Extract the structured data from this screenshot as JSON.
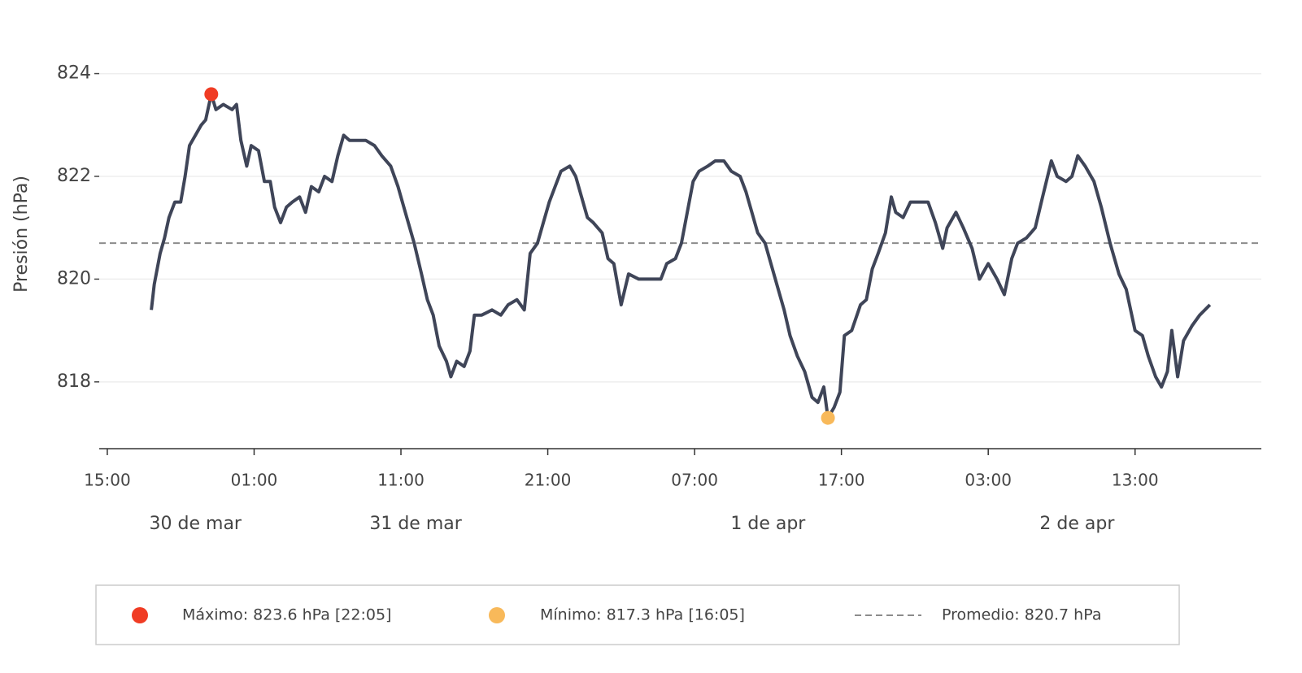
{
  "chart_data": {
    "type": "line",
    "ylabel": "Presión (hPa)",
    "color": "#3f4558",
    "grid": true,
    "xlim": [
      -0.55,
      78.6
    ],
    "ylim": [
      816.7,
      824.8
    ],
    "yticks": [
      818,
      820,
      822,
      824
    ],
    "xticks": [
      {
        "value": 0,
        "label": "15:00"
      },
      {
        "value": 10,
        "label": "01:00"
      },
      {
        "value": 20,
        "label": "11:00"
      },
      {
        "value": 30,
        "label": "21:00"
      },
      {
        "value": 40,
        "label": "07:00"
      },
      {
        "value": 50,
        "label": "17:00"
      },
      {
        "value": 60,
        "label": "03:00"
      },
      {
        "value": 70,
        "label": "13:00"
      }
    ],
    "day_labels": [
      {
        "value": -15,
        "label": "30 de mar"
      },
      {
        "value": 9,
        "label": "31 de mar"
      },
      {
        "value": 33,
        "label": "1 de apr"
      },
      {
        "value": 57,
        "label": "2 de apr"
      }
    ],
    "x": [
      3.0,
      3.2,
      3.6,
      3.9,
      4.2,
      4.6,
      5.0,
      5.3,
      5.6,
      6.0,
      6.4,
      6.7,
      7.083,
      7.4,
      7.9,
      8.5,
      8.8,
      9.1,
      9.5,
      9.8,
      10.3,
      10.7,
      11.1,
      11.4,
      11.8,
      12.2,
      12.6,
      13.1,
      13.5,
      13.9,
      14.4,
      14.8,
      15.3,
      15.7,
      16.1,
      16.5,
      17.1,
      17.6,
      18.2,
      18.7,
      19.3,
      19.8,
      20.4,
      20.9,
      21.4,
      21.8,
      22.2,
      22.6,
      23.1,
      23.4,
      23.8,
      24.3,
      24.7,
      25.0,
      25.5,
      26.2,
      26.8,
      27.3,
      27.9,
      28.4,
      28.8,
      29.3,
      29.7,
      30.1,
      30.5,
      30.9,
      31.5,
      31.9,
      32.3,
      32.7,
      33.1,
      33.7,
      34.1,
      34.5,
      35.0,
      35.5,
      36.2,
      37.0,
      37.7,
      38.1,
      38.7,
      39.1,
      39.5,
      39.9,
      40.3,
      40.9,
      41.4,
      42.0,
      42.5,
      43.1,
      43.5,
      43.9,
      44.3,
      44.8,
      45.3,
      45.8,
      46.1,
      46.5,
      47.0,
      47.5,
      48.0,
      48.4,
      48.8,
      49.083,
      49.5,
      49.9,
      50.2,
      50.7,
      51.3,
      51.7,
      52.1,
      52.5,
      53.0,
      53.4,
      53.7,
      54.2,
      54.7,
      55.3,
      55.9,
      56.4,
      56.9,
      57.2,
      57.8,
      58.3,
      58.9,
      59.4,
      60.0,
      60.6,
      61.1,
      61.6,
      62.0,
      62.6,
      63.2,
      63.7,
      64.3,
      64.7,
      65.3,
      65.7,
      66.1,
      66.6,
      67.2,
      67.7,
      68.3,
      68.9,
      69.4,
      70.0,
      70.5,
      70.9,
      71.4,
      71.8,
      72.2,
      72.5,
      72.9,
      73.3,
      73.9,
      74.4,
      75.1
    ],
    "values": [
      819.4,
      819.9,
      820.5,
      820.8,
      821.2,
      821.5,
      821.5,
      822.0,
      822.6,
      822.8,
      823.0,
      823.1,
      823.6,
      823.3,
      823.4,
      823.3,
      823.4,
      822.7,
      822.2,
      822.6,
      822.5,
      821.9,
      821.9,
      821.4,
      821.1,
      821.4,
      821.5,
      821.6,
      821.3,
      821.8,
      821.7,
      822.0,
      821.9,
      822.4,
      822.8,
      822.7,
      822.7,
      822.7,
      822.6,
      822.4,
      822.2,
      821.8,
      821.2,
      820.7,
      820.1,
      819.6,
      819.3,
      818.7,
      818.4,
      818.1,
      818.4,
      818.3,
      818.6,
      819.3,
      819.3,
      819.4,
      819.3,
      819.5,
      819.6,
      819.4,
      820.5,
      820.7,
      821.1,
      821.5,
      821.8,
      822.1,
      822.2,
      822.0,
      821.6,
      821.2,
      821.1,
      820.9,
      820.4,
      820.3,
      819.5,
      820.1,
      820.0,
      820.0,
      820.0,
      820.3,
      820.4,
      820.7,
      821.3,
      821.9,
      822.1,
      822.2,
      822.3,
      822.3,
      822.1,
      822.0,
      821.7,
      821.3,
      820.9,
      820.7,
      820.2,
      819.7,
      819.4,
      818.9,
      818.5,
      818.2,
      817.7,
      817.6,
      817.9,
      817.3,
      817.5,
      817.8,
      818.9,
      819.0,
      819.5,
      819.6,
      820.2,
      820.5,
      820.9,
      821.6,
      821.3,
      821.2,
      821.5,
      821.5,
      821.5,
      821.1,
      820.6,
      821.0,
      821.3,
      821.0,
      820.6,
      820.0,
      820.3,
      820.0,
      819.7,
      820.4,
      820.7,
      820.8,
      821.0,
      821.6,
      822.3,
      822.0,
      821.9,
      822.0,
      822.4,
      822.2,
      821.9,
      821.4,
      820.7,
      820.1,
      819.8,
      819.0,
      818.9,
      818.5,
      818.1,
      817.9,
      818.2,
      819.0,
      818.1,
      818.8,
      819.1,
      819.3,
      819.5
    ],
    "max": {
      "x": 7.083,
      "value": 823.6,
      "color": "#f03c24",
      "label": "Máximo: 823.6 hPa   [22:05]"
    },
    "min": {
      "x": 49.083,
      "value": 817.3,
      "color": "#f8b95a",
      "label": "Mínimo: 817.3 hPa   [16:05]"
    },
    "mean": {
      "value": 820.7,
      "color": "#8c8c8c",
      "label": "Promedio: 820.7 hPa"
    }
  }
}
